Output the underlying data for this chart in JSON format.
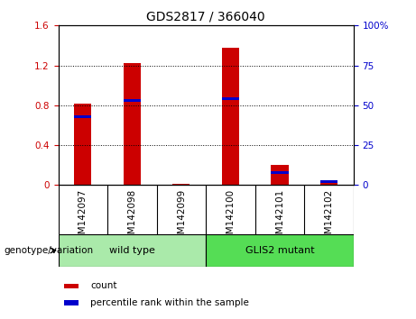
{
  "title": "GDS2817 / 366040",
  "categories": [
    "GSM142097",
    "GSM142098",
    "GSM142099",
    "GSM142100",
    "GSM142101",
    "GSM142102"
  ],
  "red_values": [
    0.82,
    1.22,
    0.01,
    1.38,
    0.2,
    0.05
  ],
  "blue_values": [
    43,
    53,
    0,
    54,
    8,
    2
  ],
  "ylim_left": [
    0,
    1.6
  ],
  "ylim_right": [
    0,
    100
  ],
  "yticks_left": [
    0,
    0.4,
    0.8,
    1.2,
    1.6
  ],
  "yticks_left_labels": [
    "0",
    "0.4",
    "0.8",
    "1.2",
    "1.6"
  ],
  "yticks_right": [
    0,
    25,
    50,
    75,
    100
  ],
  "yticks_right_labels": [
    "0",
    "25",
    "50",
    "75",
    "100%"
  ],
  "group1_label": "wild type",
  "group2_label": "GLIS2 mutant",
  "group_label": "genotype/variation",
  "legend_items": [
    {
      "color": "#CC0000",
      "label": "count"
    },
    {
      "color": "#0000CC",
      "label": "percentile rank within the sample"
    }
  ],
  "bar_color_red": "#CC0000",
  "bar_color_blue": "#0000CC",
  "bar_width": 0.35,
  "title_fontsize": 10,
  "tick_fontsize": 7.5,
  "axis_label_color_left": "#CC0000",
  "axis_label_color_right": "#0000CC",
  "bg_color": "#D8D8D8",
  "plot_bg": "#FFFFFF",
  "group_box_color_1": "#AAEAAA",
  "group_box_color_2": "#55DD55"
}
